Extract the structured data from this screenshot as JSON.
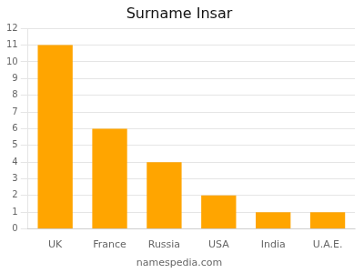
{
  "chart_data": {
    "type": "bar",
    "title": "Surname Insar",
    "categories": [
      "UK",
      "France",
      "Russia",
      "USA",
      "India",
      "U.A.E."
    ],
    "values": [
      11,
      6,
      4,
      2,
      1,
      1
    ],
    "color": "#FFA500",
    "ylim": [
      0,
      12
    ],
    "yticks": [
      0,
      1,
      2,
      3,
      4,
      5,
      6,
      7,
      8,
      9,
      10,
      11,
      12
    ],
    "grid": true,
    "annotations": [
      "namespedia.com"
    ]
  }
}
